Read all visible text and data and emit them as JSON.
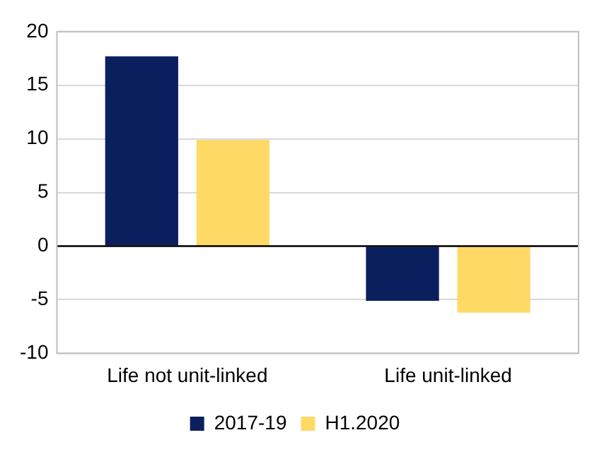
{
  "chart_data": {
    "type": "bar",
    "categories": [
      "Life not unit-linked",
      "Life unit-linked"
    ],
    "series": [
      {
        "name": "2017-19",
        "color": "#0b1f5e",
        "values": [
          17.7,
          -5.1
        ]
      },
      {
        "name": "H1.2020",
        "color": "#ffd966",
        "values": [
          9.9,
          -6.2
        ]
      }
    ],
    "ylim": [
      -10,
      20
    ],
    "yticks": [
      -10,
      -5,
      0,
      5,
      10,
      15,
      20
    ],
    "grid": "y",
    "legend": "bottom"
  }
}
